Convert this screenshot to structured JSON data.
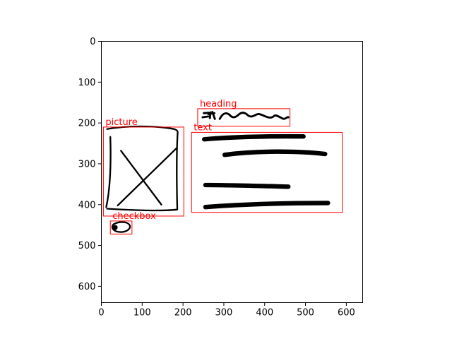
{
  "plot": {
    "x_ticks": [
      "0",
      "100",
      "200",
      "300",
      "400",
      "500",
      "600"
    ],
    "y_ticks": [
      "0",
      "100",
      "200",
      "300",
      "400",
      "500",
      "600"
    ],
    "x_range": [
      0,
      640
    ],
    "y_range": [
      640,
      0
    ],
    "y_axis_inverted": true
  },
  "colors": {
    "annotation": "#ff0000",
    "sketch": "#000000",
    "frame": "#000000",
    "background": "#ffffff"
  },
  "annotations": [
    {
      "label": "heading",
      "x_range": [
        236,
        462
      ],
      "y_range": [
        165,
        208
      ]
    },
    {
      "label": "picture",
      "x_range": [
        5,
        202
      ],
      "y_range": [
        210,
        428
      ]
    },
    {
      "label": "text",
      "x_range": [
        221,
        590
      ],
      "y_range": [
        223,
        419
      ]
    },
    {
      "label": "checkbox",
      "x_range": [
        22,
        75
      ],
      "y_range": [
        440,
        472
      ]
    }
  ]
}
